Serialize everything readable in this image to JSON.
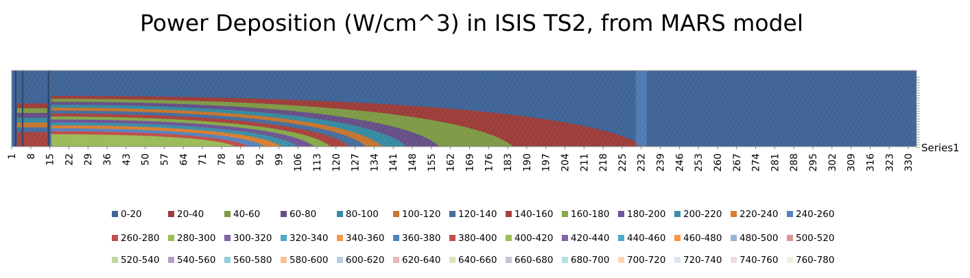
{
  "chart_data": {
    "type": "heatmap",
    "title": "Power Deposition (W/cm^3) in ISIS TS2, from MARS model",
    "series_label": "Series1",
    "x_ticks": [
      "1",
      "8",
      "15",
      "22",
      "29",
      "36",
      "43",
      "50",
      "57",
      "64",
      "71",
      "78",
      "85",
      "92",
      "99",
      "106",
      "113",
      "120",
      "127",
      "134",
      "141",
      "148",
      "155",
      "162",
      "169",
      "176",
      "183",
      "190",
      "197",
      "204",
      "211",
      "218",
      "225",
      "232",
      "239",
      "246",
      "253",
      "260",
      "267",
      "274",
      "281",
      "288",
      "295",
      "302",
      "309",
      "316",
      "323",
      "330"
    ],
    "x_range": [
      1,
      333
    ],
    "contour_extent_x": [
      {
        "level": "0-20",
        "x_end": 333
      },
      {
        "level": "20-40",
        "x_end": 233
      },
      {
        "level": "40-60",
        "x_end": 185
      },
      {
        "level": "60-80",
        "x_end": 158
      },
      {
        "level": "80-100",
        "x_end": 146
      },
      {
        "level": "100-120",
        "x_end": 137
      },
      {
        "level": "120-140",
        "x_end": 131
      },
      {
        "level": "140-160",
        "x_end": 125
      },
      {
        "level": "160-180",
        "x_end": 118
      },
      {
        "level": "180-200",
        "x_end": 112
      },
      {
        "level": "200-220",
        "x_end": 106
      },
      {
        "level": "220-240",
        "x_end": 100
      },
      {
        "level": "240-260",
        "x_end": 94
      },
      {
        "level": "260-280",
        "x_end": 88
      },
      {
        "level": "280-300",
        "x_end": 83
      }
    ],
    "legend": [
      {
        "label": "0-20",
        "color": "#3f6496"
      },
      {
        "label": "20-40",
        "color": "#9c3d3a"
      },
      {
        "label": "40-60",
        "color": "#7e9a46"
      },
      {
        "label": "60-80",
        "color": "#664f86"
      },
      {
        "label": "80-100",
        "color": "#368aa1"
      },
      {
        "label": "100-120",
        "color": "#c5752f"
      },
      {
        "label": "120-140",
        "color": "#466d9e"
      },
      {
        "label": "140-160",
        "color": "#a9423f"
      },
      {
        "label": "160-180",
        "color": "#86a94a"
      },
      {
        "label": "180-200",
        "color": "#6e5594"
      },
      {
        "label": "200-220",
        "color": "#3c8ea8"
      },
      {
        "label": "220-240",
        "color": "#d87f30"
      },
      {
        "label": "240-260",
        "color": "#5982be"
      },
      {
        "label": "260-280",
        "color": "#c04e4b"
      },
      {
        "label": "280-300",
        "color": "#9bbb59"
      },
      {
        "label": "300-320",
        "color": "#8064a2"
      },
      {
        "label": "320-340",
        "color": "#4bacc6"
      },
      {
        "label": "340-360",
        "color": "#f79646"
      },
      {
        "label": "360-380",
        "color": "#4f81bd"
      },
      {
        "label": "380-400",
        "color": "#c0504d"
      },
      {
        "label": "400-420",
        "color": "#9bbb59"
      },
      {
        "label": "420-440",
        "color": "#8064a2"
      },
      {
        "label": "440-460",
        "color": "#4bacc6"
      },
      {
        "label": "460-480",
        "color": "#f79646"
      },
      {
        "label": "480-500",
        "color": "#95b3d7"
      },
      {
        "label": "500-520",
        "color": "#d99795"
      },
      {
        "label": "520-540",
        "color": "#c3d69b"
      },
      {
        "label": "540-560",
        "color": "#b2a1c7"
      },
      {
        "label": "560-580",
        "color": "#92cddc"
      },
      {
        "label": "580-600",
        "color": "#fabf8f"
      },
      {
        "label": "600-620",
        "color": "#b8cce4"
      },
      {
        "label": "620-640",
        "color": "#e6b9b8"
      },
      {
        "label": "640-660",
        "color": "#d7e4bd"
      },
      {
        "label": "660-680",
        "color": "#ccc1da"
      },
      {
        "label": "680-700",
        "color": "#b7dee8"
      },
      {
        "label": "700-720",
        "color": "#fcd5b5"
      },
      {
        "label": "720-740",
        "color": "#dbe5f1"
      },
      {
        "label": "740-760",
        "color": "#f2dcdb"
      },
      {
        "label": "760-780",
        "color": "#ebf1de"
      }
    ],
    "legend_position": "bottom"
  }
}
